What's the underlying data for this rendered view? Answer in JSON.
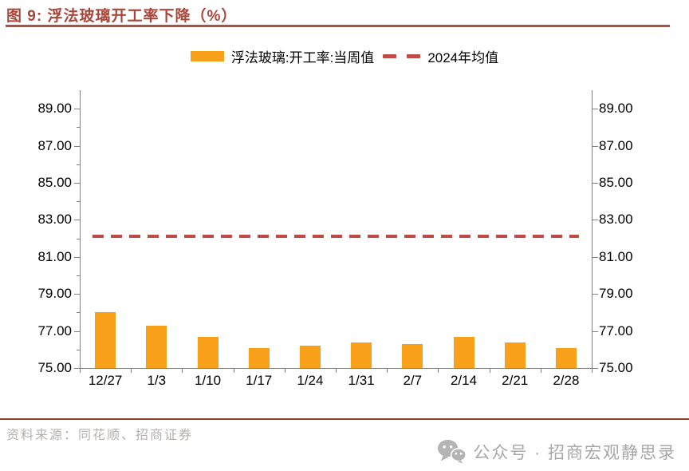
{
  "page": {
    "title": "图 9: 浮法玻璃开工率下降（%）"
  },
  "legend": {
    "bar_label": "浮法玻璃:开工率:当周值",
    "line_label": "2024年均值"
  },
  "footer": {
    "source": "资料来源：同花顺、招商证券",
    "wechat": "公众号 · 招商宏观静思录"
  },
  "colors": {
    "bar": "#F9A01B",
    "average_line": "#BE4B48",
    "title": "#A8463A",
    "underline": "#AA5245",
    "footer_divider": "#8E3A30",
    "source_text": "#B5B0AD",
    "wechat_text": "#A7A7A7",
    "axis": "#808080",
    "tick_label": "#000000"
  },
  "chart_data": {
    "type": "bar",
    "title": "图 9: 浮法玻璃开工率下降（%）",
    "categories": [
      "12/27",
      "1/3",
      "1/10",
      "1/17",
      "1/24",
      "1/31",
      "2/7",
      "2/14",
      "2/21",
      "2/28"
    ],
    "series": [
      {
        "name": "浮法玻璃:开工率:当周值",
        "type": "bar",
        "values": [
          78.0,
          77.3,
          76.7,
          76.1,
          76.2,
          76.4,
          76.3,
          76.7,
          76.4,
          76.1
        ]
      },
      {
        "name": "2024年均值",
        "type": "line",
        "style": "dashed",
        "values": [
          82.1,
          82.1,
          82.1,
          82.1,
          82.1,
          82.1,
          82.1,
          82.1,
          82.1,
          82.1
        ]
      }
    ],
    "ylabel": "",
    "xlabel": "",
    "ylim": [
      75,
      90
    ],
    "ytick_labels": [
      "75.00",
      "77.00",
      "79.00",
      "81.00",
      "83.00",
      "85.00",
      "87.00",
      "89.00"
    ],
    "minor_ytick_step": 1,
    "dual_y_axis": true,
    "grid": false,
    "legend_position": "top"
  }
}
